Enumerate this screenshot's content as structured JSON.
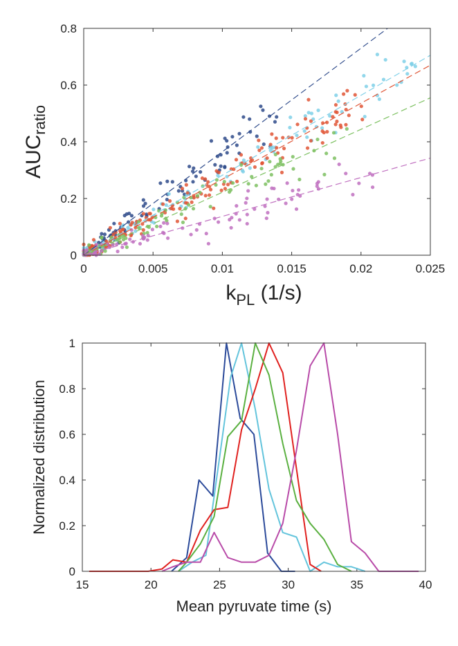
{
  "chart_data": [
    {
      "type": "scatter",
      "xlabel": "k",
      "xlabel_sub": "PL",
      "xlabel_unit": " (1/s)",
      "ylabel": "AUC",
      "ylabel_sub": "ratio",
      "xlim": [
        0,
        0.025
      ],
      "ylim": [
        0,
        0.8
      ],
      "xticks": [
        0,
        0.005,
        0.01,
        0.015,
        0.02,
        0.025
      ],
      "xtick_labels": [
        "0",
        "0.005",
        "0.01",
        "0.015",
        "0.02",
        "0.025"
      ],
      "yticks": [
        0,
        0.2,
        0.4,
        0.6,
        0.8
      ],
      "ytick_labels": [
        "0",
        "0.2",
        "0.4",
        "0.6",
        "0.8"
      ],
      "series": [
        {
          "name": "navy",
          "color": "#2e4a8a",
          "slope": 36.5,
          "noise": 0.035,
          "n": 90,
          "xmax": 0.014
        },
        {
          "name": "skyblue",
          "color": "#7fd0e8",
          "slope": 28.2,
          "noise": 0.03,
          "n": 110,
          "xmax": 0.024
        },
        {
          "name": "red",
          "color": "#e05535",
          "slope": 26.8,
          "noise": 0.035,
          "n": 160,
          "xmax": 0.021
        },
        {
          "name": "green",
          "color": "#7cc060",
          "slope": 22.2,
          "noise": 0.03,
          "n": 100,
          "xmax": 0.019
        },
        {
          "name": "magenta",
          "color": "#c070c0",
          "slope": 13.7,
          "noise": 0.035,
          "n": 90,
          "xmax": 0.021
        }
      ]
    },
    {
      "type": "line",
      "xlabel": "Mean pyruvate time (s)",
      "ylabel": "Normalized distribution",
      "xlim": [
        15,
        40
      ],
      "ylim": [
        0,
        1
      ],
      "xticks": [
        15,
        20,
        25,
        30,
        35,
        40
      ],
      "xtick_labels": [
        "15",
        "20",
        "25",
        "30",
        "35",
        "40"
      ],
      "yticks": [
        0,
        0.2,
        0.4,
        0.6,
        0.8,
        1
      ],
      "ytick_labels": [
        "0",
        "0.2",
        "0.4",
        "0.6",
        "0.8",
        "1"
      ],
      "series": [
        {
          "name": "navy",
          "color": "#2b4a9a",
          "x": [
            21.5,
            22.6,
            23.5,
            24.5,
            25.5,
            26.5,
            27.5,
            28.5,
            29.5,
            30.5
          ],
          "y": [
            0,
            0.06,
            0.4,
            0.33,
            1.0,
            0.67,
            0.6,
            0.08,
            0,
            0
          ]
        },
        {
          "name": "skyblue",
          "color": "#63c4dc",
          "x": [
            22.0,
            23.0,
            24.0,
            25.0,
            25.8,
            26.6,
            27.6,
            28.6,
            29.6,
            30.6,
            31.6,
            32.6,
            33.6,
            34.6,
            35.6
          ],
          "y": [
            0,
            0.04,
            0.07,
            0.5,
            0.85,
            1.0,
            0.71,
            0.36,
            0.17,
            0.15,
            0,
            0.04,
            0.02,
            0.02,
            0
          ]
        },
        {
          "name": "red",
          "color": "#e0201e",
          "x": [
            15.5,
            19.8,
            20.8,
            21.6,
            22.6,
            23.6,
            24.6,
            25.6,
            26.6,
            27.6,
            28.6,
            29.6,
            30.6,
            31.6,
            32.4
          ],
          "y": [
            0,
            0,
            0.01,
            0.05,
            0.04,
            0.18,
            0.27,
            0.28,
            0.62,
            0.8,
            1.0,
            0.87,
            0.45,
            0.03,
            0
          ]
        },
        {
          "name": "green",
          "color": "#5ab040",
          "x": [
            22.0,
            22.6,
            23.6,
            24.6,
            25.6,
            26.6,
            27.6,
            28.6,
            29.6,
            30.6,
            31.6,
            32.6,
            33.6,
            34.6
          ],
          "y": [
            0,
            0.04,
            0.12,
            0.24,
            0.59,
            0.66,
            1.0,
            0.86,
            0.56,
            0.31,
            0.21,
            0.14,
            0.03,
            0
          ]
        },
        {
          "name": "magenta",
          "color": "#b84aa8",
          "x": [
            20.8,
            21.6,
            22.6,
            23.6,
            24.6,
            25.6,
            26.6,
            27.6,
            28.6,
            29.6,
            30.6,
            31.6,
            32.6,
            33.6,
            34.6,
            35.6,
            36.6,
            39.5
          ],
          "y": [
            0,
            0.02,
            0.04,
            0.04,
            0.17,
            0.06,
            0.04,
            0.04,
            0.07,
            0.21,
            0.53,
            0.9,
            1.0,
            0.6,
            0.13,
            0.08,
            0,
            0
          ]
        }
      ]
    }
  ]
}
